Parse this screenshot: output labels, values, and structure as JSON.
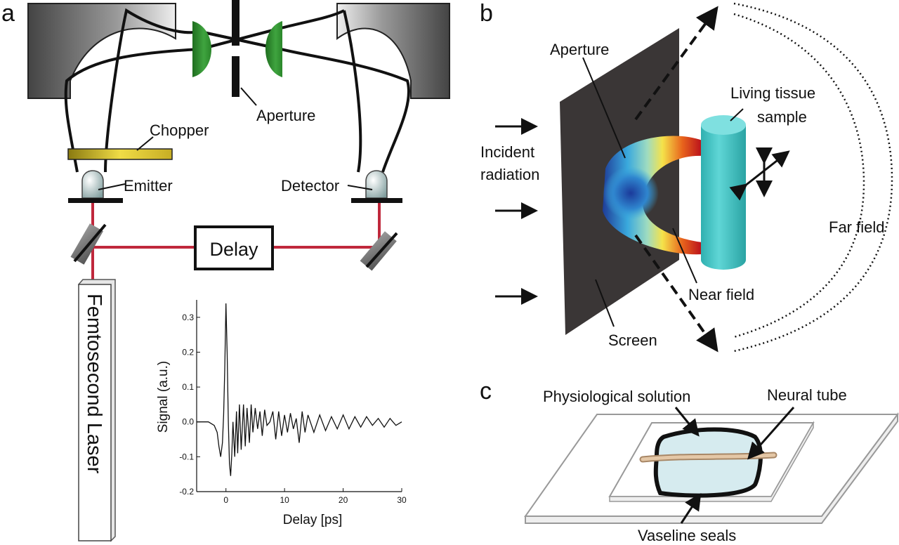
{
  "panels": {
    "a": {
      "letter": "a",
      "labels": {
        "aperture": "Aperture",
        "chopper": "Chopper",
        "emitter": "Emitter",
        "detector": "Detector",
        "delay": "Delay",
        "laser": "Femtosecond Laser"
      }
    },
    "b": {
      "letter": "b",
      "labels": {
        "aperture": "Aperture",
        "incident_1": "Incident",
        "incident_2": "radiation",
        "sample_1": "Living tissue",
        "sample_2": "sample",
        "far_field": "Far field",
        "near_field": "Near field",
        "screen": "Screen"
      }
    },
    "c": {
      "letter": "c",
      "labels": {
        "solution": "Physiological solution",
        "neural_tube": "Neural tube",
        "vaseline": "Vaseline seals"
      }
    }
  },
  "colors": {
    "lens": "#2f8f2f",
    "beam": "#c0283c",
    "chopper": "#d4bd2a",
    "mirror_dark": "#555555",
    "screen": "#3a3636",
    "cylinder": "#45c6c6",
    "solution": "#d6ebef",
    "tube": "#d9b48f"
  },
  "chart_data": {
    "type": "line",
    "xlabel": "Delay [ps]",
    "ylabel": "Signal (a.u.)",
    "xlim": [
      -5,
      30
    ],
    "ylim": [
      -0.2,
      0.35
    ],
    "xticks": [
      0,
      10,
      20,
      30
    ],
    "yticks": [
      -0.2,
      -0.1,
      0.0,
      0.1,
      0.2,
      0.3
    ],
    "ytick_labels": [
      "-0.2",
      "-0.1",
      "0.0",
      "0.1",
      "0.2",
      "0.3"
    ],
    "series": [
      {
        "x": [
          -5,
          -3,
          -2,
          -1.5,
          -1.2,
          -0.9,
          -0.6,
          -0.4,
          -0.2,
          0,
          0.2,
          0.4,
          0.6,
          0.8,
          1.0,
          1.2,
          1.5,
          1.8,
          2.0,
          2.3,
          2.6,
          3.0,
          3.3,
          3.6,
          4.0,
          4.3,
          4.6,
          5.0,
          5.4,
          5.8,
          6.2,
          6.6,
          7.0,
          7.5,
          8.0,
          8.5,
          9.0,
          9.5,
          10,
          10.5,
          11,
          11.5,
          12,
          12.5,
          13,
          13.5,
          14,
          15,
          16,
          17,
          18,
          19,
          20,
          21,
          22,
          23,
          24,
          25,
          26,
          27,
          28,
          29,
          30
        ],
        "y": [
          0.0,
          0.0,
          -0.01,
          -0.03,
          -0.07,
          -0.1,
          -0.06,
          0.02,
          0.15,
          0.34,
          0.2,
          0.0,
          -0.12,
          -0.155,
          -0.09,
          0.0,
          -0.1,
          0.03,
          -0.09,
          0.05,
          -0.08,
          0.05,
          -0.07,
          0.04,
          -0.06,
          0.05,
          -0.03,
          0.04,
          -0.02,
          0.03,
          -0.04,
          0.035,
          -0.01,
          0.0,
          0.03,
          -0.05,
          0.03,
          -0.04,
          0.02,
          -0.03,
          0.025,
          -0.02,
          0.01,
          -0.06,
          0.03,
          -0.03,
          0.02,
          -0.03,
          0.02,
          -0.025,
          0.015,
          -0.02,
          0.02,
          -0.02,
          0.015,
          -0.015,
          0.015,
          -0.01,
          0.01,
          -0.015,
          0.01,
          -0.01,
          0.0
        ]
      }
    ]
  }
}
